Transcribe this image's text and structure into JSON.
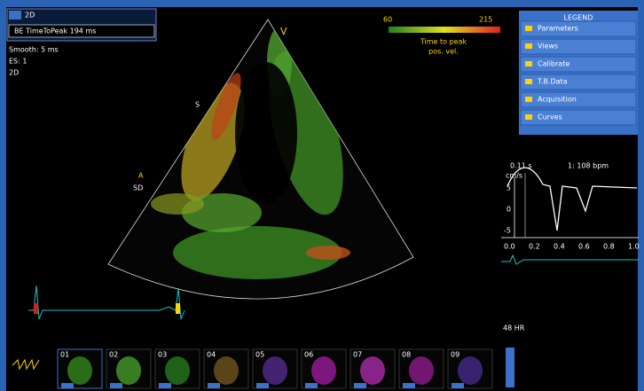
{
  "header": {
    "mode": "2D",
    "parameter": "BE TimeToPeak 194 ms",
    "smooth": "Smooth: 5 ms",
    "es": "ES: 1",
    "extra": "2D"
  },
  "colorbar": {
    "min": "60",
    "max": "215",
    "caption_1": "Time to peak",
    "caption_2": "pos. vel."
  },
  "image": {
    "apex_label": "V",
    "marker_top": "S",
    "marker_side": "A",
    "marker_side_2": "SD"
  },
  "menu": {
    "title": "LEGEND",
    "items": [
      "Parameters",
      "Views",
      "Calibrate",
      "T.B.Data",
      "Acquisition",
      "Curves"
    ]
  },
  "curve": {
    "info": "0.11 s",
    "hr": "1: 108 bpm",
    "unit": "cm/s",
    "yticks": [
      "5",
      "0",
      "-5"
    ],
    "xticks": [
      "0.0",
      "0.2",
      "0.4",
      "0.6",
      "0.8",
      "1.0"
    ]
  },
  "frame_counter": "48 HR",
  "thumbnails": [
    "01",
    "02",
    "03",
    "04",
    "05",
    "06",
    "07",
    "08",
    "09"
  ]
}
